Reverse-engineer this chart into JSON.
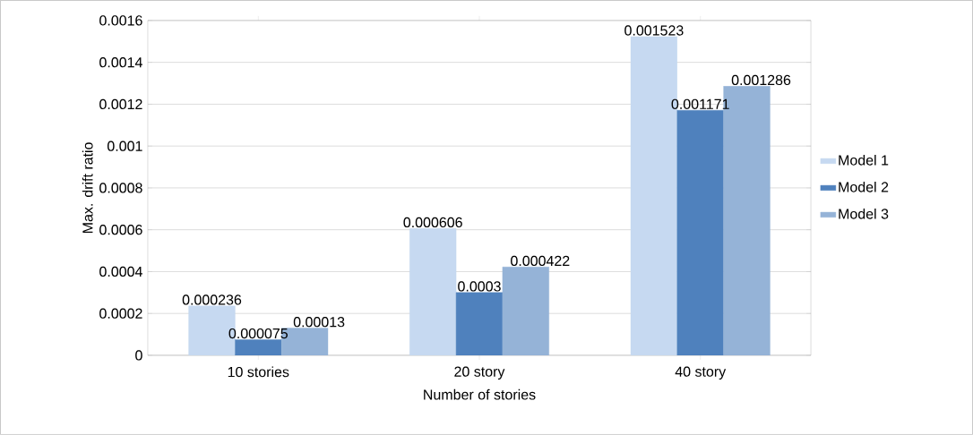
{
  "chart_data": {
    "type": "bar",
    "xlabel": "Number of stories",
    "ylabel": "Max. drift ratio",
    "categories": [
      "10 stories",
      "20 story",
      "40 story"
    ],
    "series": [
      {
        "name": "Model 1",
        "color": "#c6d9f1",
        "values": [
          0.000236,
          0.000606,
          0.001523
        ],
        "value_labels": [
          "0.000236",
          "0.000606",
          "0.001523"
        ]
      },
      {
        "name": "Model 2",
        "color": "#4f81bd",
        "values": [
          7.5e-05,
          0.0003,
          0.001171
        ],
        "value_labels": [
          "0.000075",
          "0.0003",
          "0.001171"
        ]
      },
      {
        "name": "Model 3",
        "color": "#95b3d7",
        "values": [
          0.00013,
          0.000422,
          0.001286
        ],
        "value_labels": [
          "0.00013",
          "0.000422",
          "0.001286"
        ]
      }
    ],
    "ylim": [
      0,
      0.0016
    ],
    "yticks": [
      0,
      0.0002,
      0.0004,
      0.0006,
      0.0008,
      0.001,
      0.0012,
      0.0014,
      0.0016
    ],
    "grid": "y",
    "legend": "right"
  }
}
